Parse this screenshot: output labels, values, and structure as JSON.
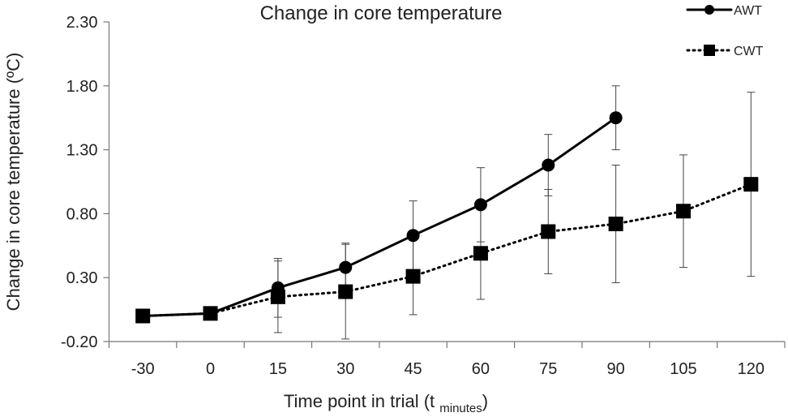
{
  "chart_data": {
    "type": "line",
    "title": "Change in core temperature",
    "y_label": "Change in core temperature (ºC)",
    "x_label": [
      "Time point in trial (t ",
      "minutes",
      ")"
    ],
    "categories": [
      "-30",
      "0",
      "15",
      "30",
      "45",
      "60",
      "75",
      "90",
      "105",
      "120"
    ],
    "ylim": [
      -0.2,
      2.3
    ],
    "yticks": [
      {
        "value": -0.2,
        "label": "-0.20"
      },
      {
        "value": 0.3,
        "label": "0.30"
      },
      {
        "value": 0.8,
        "label": "0.80"
      },
      {
        "value": 1.3,
        "label": "1.30"
      },
      {
        "value": 1.8,
        "label": "1.80"
      },
      {
        "value": 2.3,
        "label": "2.30"
      }
    ],
    "series": [
      {
        "name": "AWT",
        "color": "#000000",
        "line_style": "solid",
        "marker": "circle",
        "values": [
          0.0,
          0.02,
          0.22,
          0.38,
          0.63,
          0.87,
          1.18,
          1.55,
          null,
          null
        ],
        "errors": [
          null,
          null,
          0.23,
          0.19,
          0.27,
          0.29,
          0.24,
          0.25,
          null,
          null
        ]
      },
      {
        "name": "CWT",
        "color": "#000000",
        "line_style": "dotted",
        "marker": "square",
        "values": [
          0.0,
          0.02,
          0.15,
          0.19,
          0.31,
          0.49,
          0.66,
          0.72,
          0.82,
          1.03
        ],
        "errors": [
          null,
          null,
          0.28,
          0.37,
          0.3,
          0.36,
          0.33,
          0.46,
          0.44,
          0.72
        ]
      }
    ]
  }
}
